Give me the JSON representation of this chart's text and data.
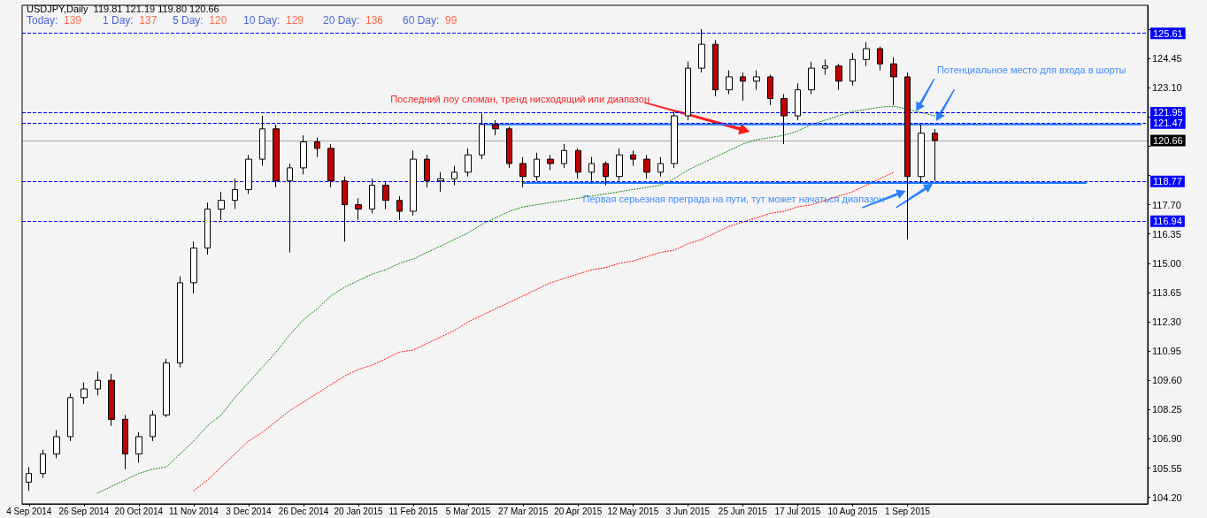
{
  "chart_data": {
    "type": "candlestick",
    "title": "USDJPY,Daily",
    "subtitle": "119.81 121.19 119.80 120.66",
    "annotations": [
      "Today: 139",
      "1 Day: 137",
      "5 Day: 120",
      "10 Day: 129",
      "20 Day: 136",
      "60 Day: 99",
      "Последний лоу сломан, тренд нисходящий или диапазон",
      "Потенциальное место для входа в шорты",
      "Первая серьезная преграда на пути, тут может начаться диапазон"
    ],
    "categories": [
      "4 Sep 2014",
      null,
      null,
      null,
      "26 Sep 2014",
      null,
      null,
      null,
      "20 Oct 2014",
      null,
      null,
      null,
      "11 Nov 2014",
      null,
      null,
      null,
      "3 Dec 2014",
      null,
      null,
      null,
      "26 Dec 2014",
      null,
      null,
      null,
      "20 Jan 2015",
      null,
      null,
      null,
      "11 Feb 2015",
      null,
      null,
      null,
      "5 Mar 2015",
      null,
      null,
      null,
      "27 Mar 2015",
      null,
      null,
      null,
      "20 Apr 2015",
      null,
      null,
      null,
      "12 May 2015",
      null,
      null,
      null,
      "3 Jun 2015",
      null,
      null,
      null,
      "25 Jun 2015",
      null,
      null,
      null,
      "17 Jul 2015",
      null,
      null,
      null,
      "10 Aug 2015",
      null,
      null,
      null,
      "1 Sep 2015",
      null,
      null,
      null,
      null,
      null,
      null,
      null,
      null,
      null,
      null,
      null,
      null,
      null,
      null,
      null,
      null,
      null
    ],
    "ohlc": [
      [
        104.9,
        105.6,
        104.5,
        105.3
      ],
      [
        105.3,
        106.4,
        105.1,
        106.2
      ],
      [
        106.2,
        107.3,
        106.0,
        107.0
      ],
      [
        107.0,
        109.0,
        106.8,
        108.8
      ],
      [
        108.8,
        109.5,
        108.5,
        109.2
      ],
      [
        109.2,
        110.0,
        108.9,
        109.6
      ],
      [
        109.6,
        109.9,
        107.5,
        107.8
      ],
      [
        107.8,
        108.0,
        105.5,
        106.2
      ],
      [
        106.2,
        107.2,
        105.8,
        107.0
      ],
      [
        107.0,
        108.2,
        106.8,
        108.0
      ],
      [
        108.0,
        110.6,
        107.9,
        110.4
      ],
      [
        110.4,
        114.4,
        110.2,
        114.1
      ],
      [
        114.1,
        116.0,
        113.6,
        115.7
      ],
      [
        115.7,
        117.8,
        115.4,
        117.5
      ],
      [
        117.5,
        118.3,
        117.0,
        117.9
      ],
      [
        117.9,
        118.9,
        117.5,
        118.4
      ],
      [
        118.4,
        120.0,
        118.2,
        119.8
      ],
      [
        119.8,
        121.8,
        119.5,
        121.2
      ],
      [
        121.2,
        121.4,
        118.5,
        118.8
      ],
      [
        118.8,
        119.6,
        115.5,
        119.4
      ],
      [
        119.4,
        120.9,
        119.1,
        120.6
      ],
      [
        120.6,
        120.8,
        119.9,
        120.3
      ],
      [
        120.3,
        120.5,
        118.5,
        118.8
      ],
      [
        118.8,
        119.0,
        116.0,
        117.7
      ],
      [
        117.7,
        118.0,
        117.0,
        117.5
      ],
      [
        117.5,
        118.9,
        117.3,
        118.6
      ],
      [
        118.6,
        118.8,
        117.5,
        117.9
      ],
      [
        117.9,
        118.1,
        117.0,
        117.4
      ],
      [
        117.4,
        120.2,
        117.2,
        119.8
      ],
      [
        119.8,
        120.0,
        118.5,
        118.8
      ],
      [
        118.8,
        119.2,
        118.3,
        118.9
      ],
      [
        118.9,
        119.5,
        118.6,
        119.2
      ],
      [
        119.2,
        120.3,
        119.0,
        120.0
      ],
      [
        120.0,
        121.9,
        119.8,
        121.4
      ],
      [
        121.4,
        121.6,
        120.9,
        121.2
      ],
      [
        121.2,
        121.3,
        119.4,
        119.6
      ],
      [
        119.6,
        119.9,
        118.5,
        119.0
      ],
      [
        119.0,
        120.1,
        118.8,
        119.8
      ],
      [
        119.8,
        120.0,
        119.3,
        119.6
      ],
      [
        119.6,
        120.5,
        119.4,
        120.2
      ],
      [
        120.2,
        120.3,
        118.9,
        119.2
      ],
      [
        119.2,
        119.9,
        118.7,
        119.6
      ],
      [
        119.6,
        119.7,
        118.6,
        119.0
      ],
      [
        119.0,
        120.3,
        118.8,
        120.0
      ],
      [
        120.0,
        120.2,
        119.5,
        119.8
      ],
      [
        119.8,
        120.0,
        118.9,
        119.2
      ],
      [
        119.2,
        119.9,
        119.0,
        119.6
      ],
      [
        119.6,
        122.0,
        119.4,
        121.8
      ],
      [
        121.8,
        124.3,
        121.6,
        124.0
      ],
      [
        124.0,
        125.8,
        123.8,
        125.1
      ],
      [
        125.1,
        125.3,
        122.7,
        123.0
      ],
      [
        123.0,
        123.9,
        122.8,
        123.6
      ],
      [
        123.6,
        123.8,
        122.5,
        123.4
      ],
      [
        123.4,
        123.9,
        123.0,
        123.6
      ],
      [
        123.6,
        123.7,
        122.3,
        122.6
      ],
      [
        122.6,
        122.8,
        120.5,
        121.8
      ],
      [
        121.8,
        123.3,
        121.6,
        123.0
      ],
      [
        123.0,
        124.3,
        122.8,
        124.0
      ],
      [
        124.0,
        124.4,
        123.7,
        124.1
      ],
      [
        124.1,
        124.2,
        123.0,
        123.4
      ],
      [
        123.4,
        124.7,
        123.2,
        124.4
      ],
      [
        124.4,
        125.2,
        124.1,
        124.9
      ],
      [
        124.9,
        125.0,
        123.9,
        124.2
      ],
      [
        124.2,
        124.5,
        122.3,
        123.6
      ],
      [
        123.6,
        123.8,
        116.1,
        119.0
      ],
      [
        119.0,
        121.4,
        118.7,
        121.0
      ],
      [
        121.0,
        121.19,
        118.8,
        120.66
      ],
      null,
      null,
      null,
      null,
      null,
      null,
      null,
      null,
      null,
      null,
      null,
      null,
      null,
      null,
      null
    ],
    "colors": [
      "#ffffff",
      "#ffffff",
      "#ffffff",
      "#ffffff",
      "#ffffff",
      "#ffffff",
      "#c00000",
      "#c00000",
      "#ffffff",
      "#ffffff",
      "#ffffff",
      "#ffffff",
      "#ffffff",
      "#ffffff",
      "#ffffff",
      "#ffffff",
      "#ffffff",
      "#ffffff",
      "#c00000",
      "#ffffff",
      "#ffffff",
      "#c00000",
      "#c00000",
      "#c00000",
      "#c00000",
      "#ffffff",
      "#c00000",
      "#c00000",
      "#ffffff",
      "#c00000",
      "#ffffff",
      "#ffffff",
      "#ffffff",
      "#ffffff",
      "#c00000",
      "#c00000",
      "#c00000",
      "#ffffff",
      "#c00000",
      "#ffffff",
      "#c00000",
      "#ffffff",
      "#c00000",
      "#ffffff",
      "#c00000",
      "#c00000",
      "#ffffff",
      "#ffffff",
      "#ffffff",
      "#ffffff",
      "#c00000",
      "#ffffff",
      "#c00000",
      "#ffffff",
      "#c00000",
      "#c00000",
      "#ffffff",
      "#ffffff",
      "#ffffff",
      "#c00000",
      "#ffffff",
      "#ffffff",
      "#c00000",
      "#c00000",
      "#c00000",
      "#ffffff",
      "#c00000",
      null,
      null,
      null,
      null,
      null,
      null,
      null,
      null,
      null,
      null,
      null,
      null,
      null,
      null,
      null
    ],
    "series": [
      {
        "type": "line",
        "color": "#008000",
        "line_style": "dotted",
        "values": [
          null,
          null,
          null,
          null,
          null,
          104.4,
          104.7,
          105.0,
          105.3,
          105.5,
          105.6,
          106.2,
          106.8,
          107.5,
          108.0,
          108.8,
          109.5,
          110.2,
          110.9,
          111.7,
          112.4,
          112.9,
          113.5,
          113.9,
          114.2,
          114.5,
          114.7,
          115.0,
          115.2,
          115.5,
          115.8,
          116.1,
          116.4,
          116.8,
          117.1,
          117.4,
          117.6,
          117.7,
          117.8,
          117.9,
          118.0,
          118.1,
          118.2,
          118.3,
          118.4,
          118.5,
          118.6,
          118.9,
          119.3,
          119.6,
          119.9,
          120.2,
          120.5,
          120.7,
          120.8,
          120.9,
          121.1,
          121.4,
          121.6,
          121.8,
          122.0,
          122.1,
          122.2,
          122.25,
          122.1,
          121.95,
          121.8,
          null,
          null,
          null,
          null,
          null,
          null,
          null,
          null,
          null,
          null,
          null,
          null,
          null,
          null,
          null
        ]
      },
      {
        "type": "line",
        "color": "#ff0000",
        "line_style": "dotted",
        "values": [
          null,
          null,
          null,
          null,
          null,
          null,
          null,
          null,
          null,
          null,
          null,
          null,
          104.5,
          105.0,
          105.6,
          106.2,
          106.8,
          107.2,
          107.7,
          108.2,
          108.6,
          109.0,
          109.4,
          109.8,
          110.1,
          110.3,
          110.6,
          110.9,
          111.0,
          111.3,
          111.6,
          111.9,
          112.3,
          112.6,
          112.9,
          113.2,
          113.5,
          113.8,
          114.1,
          114.3,
          114.5,
          114.7,
          114.8,
          115.0,
          115.1,
          115.3,
          115.5,
          115.6,
          115.9,
          116.1,
          116.4,
          116.7,
          116.9,
          117.1,
          117.3,
          117.4,
          117.6,
          117.7,
          117.9,
          118.1,
          118.3,
          118.6,
          118.9,
          119.2,
          null,
          null,
          null,
          null,
          null,
          null,
          null,
          null,
          null,
          null,
          null,
          null,
          null,
          null,
          null,
          null,
          null,
          null
        ]
      },
      {
        "type": "line",
        "color": "#1e78ff",
        "line_style": "solid",
        "values": [
          null,
          null,
          null,
          null,
          null,
          null,
          null,
          null,
          null,
          null,
          null,
          null,
          null,
          null,
          null,
          null,
          null,
          null,
          null,
          null,
          null,
          null,
          null,
          null,
          null,
          null,
          null,
          null,
          null,
          null,
          null,
          null,
          null,
          121.4,
          121.4,
          121.4,
          121.4,
          121.4,
          121.4,
          121.4,
          121.4,
          121.4,
          121.4,
          121.4,
          121.4,
          121.4,
          121.4,
          121.4,
          121.4,
          121.4,
          121.4,
          121.4,
          121.4,
          121.4,
          121.4,
          121.4,
          121.4,
          121.4,
          121.4,
          121.4,
          121.4,
          121.4,
          121.4,
          121.4,
          121.4,
          121.4,
          121.4,
          121.4,
          121.4,
          121.4,
          121.4,
          121.4,
          121.4,
          121.4,
          121.4,
          121.4,
          121.4,
          121.4,
          121.4,
          121.4,
          121.4,
          121.4
        ]
      },
      {
        "type": "line",
        "color": "#1e78ff",
        "line_style": "solid",
        "values": [
          null,
          null,
          null,
          null,
          null,
          null,
          null,
          null,
          null,
          null,
          null,
          null,
          null,
          null,
          null,
          null,
          null,
          null,
          null,
          null,
          null,
          null,
          null,
          null,
          null,
          null,
          null,
          null,
          null,
          null,
          null,
          null,
          null,
          null,
          null,
          null,
          118.7,
          118.7,
          118.7,
          118.7,
          118.7,
          118.7,
          118.7,
          118.7,
          118.7,
          118.7,
          118.7,
          118.7,
          118.7,
          118.7,
          118.7,
          118.7,
          118.7,
          118.7,
          118.7,
          118.7,
          118.7,
          118.7,
          118.7,
          118.7,
          118.7,
          118.7,
          118.7,
          118.7,
          118.7,
          118.7,
          118.7,
          118.7,
          118.7,
          118.7,
          118.7,
          118.7,
          118.7,
          118.7,
          118.7,
          118.7,
          118.7,
          118.7,
          null,
          null,
          null,
          null
        ]
      }
    ],
    "ref_lines": [
      {
        "axis": "y",
        "value": 125.61,
        "label": "125.61",
        "color": "#0000ff",
        "line_style": "dashed"
      },
      {
        "axis": "y",
        "value": 121.95,
        "label": "121.95",
        "color": "#0000ff",
        "line_style": "dashed"
      },
      {
        "axis": "y",
        "value": 121.47,
        "label": "121.47",
        "color": "#0000ff",
        "line_style": "dashed"
      },
      {
        "axis": "y",
        "value": 120.66,
        "label": "120.66",
        "color": "#000000",
        "line_style": "solid"
      },
      {
        "axis": "y",
        "value": 118.77,
        "label": "118.77",
        "color": "#0000ff",
        "line_style": "dashed"
      },
      {
        "axis": "y",
        "value": 116.94,
        "label": "116.94",
        "color": "#0000ff",
        "line_style": "dashed"
      }
    ],
    "ylim": [
      103.9,
      126.9
    ],
    "yticks": [
      {
        "value": 104.2,
        "label": "104.20"
      },
      {
        "value": 105.55,
        "label": "105.55"
      },
      {
        "value": 106.9,
        "label": "106.90"
      },
      {
        "value": 108.25,
        "label": "108.25"
      },
      {
        "value": 109.6,
        "label": "109.60"
      },
      {
        "value": 110.95,
        "label": "110.95"
      },
      {
        "value": 112.3,
        "label": "112.30"
      },
      {
        "value": 113.65,
        "label": "113.65"
      },
      {
        "value": 115,
        "label": "115.00"
      },
      {
        "value": 116.35,
        "label": "116.35"
      },
      {
        "value": 117.7,
        "label": "117.70"
      },
      {
        "value": 119.05,
        "label": null
      },
      {
        "value": 120.4,
        "label": null
      },
      {
        "value": 121.75,
        "label": null
      },
      {
        "value": 123.1,
        "label": "123.10"
      },
      {
        "value": 124.45,
        "label": "124.45"
      },
      {
        "value": 125.8,
        "label": null
      }
    ],
    "grid": false,
    "marker": "none"
  }
}
